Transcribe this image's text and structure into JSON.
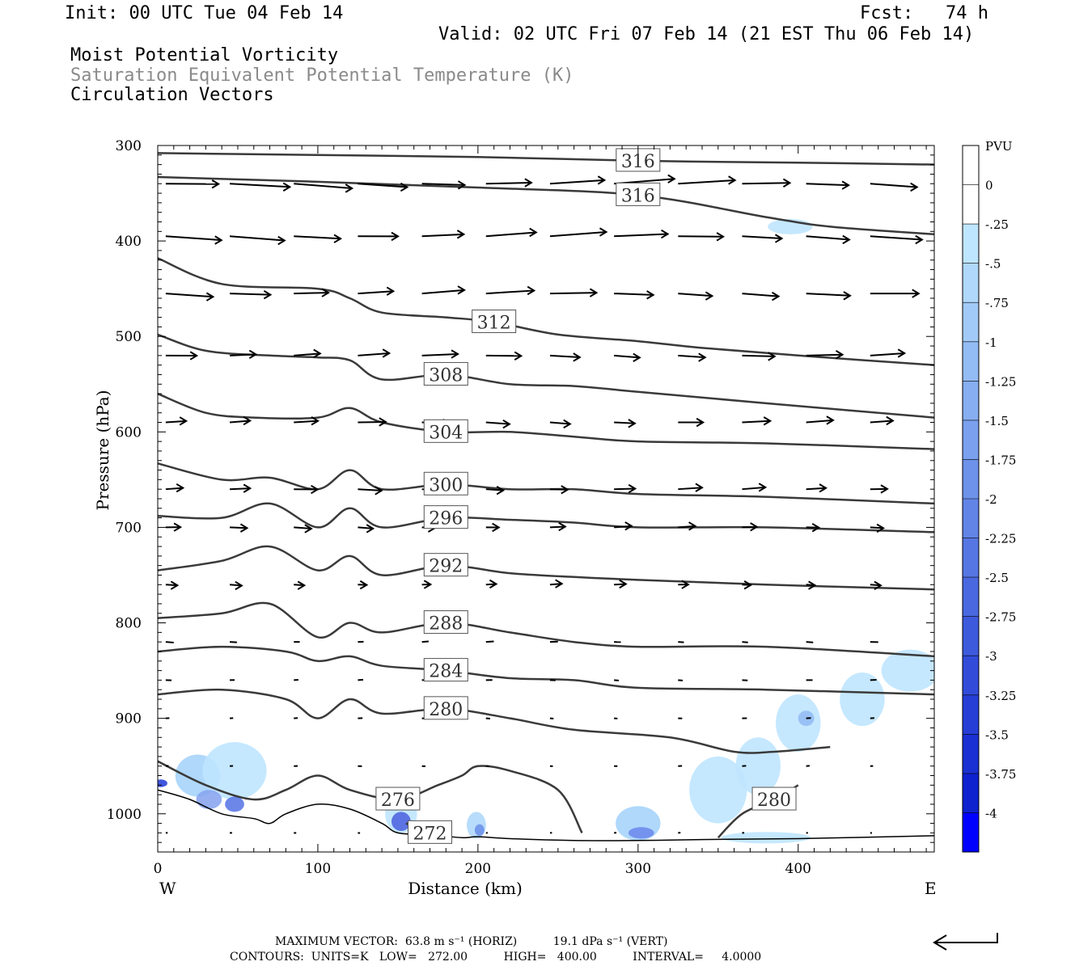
{
  "header": {
    "init": "Init: 00 UTC Tue 04 Feb 14",
    "fcst": "Fcst:   74 h",
    "valid": "Valid: 02 UTC Fri 07 Feb 14 (21 EST Thu 06 Feb 14)",
    "field1": "Moist Potential Vorticity",
    "field2": "Saturation Equivalent Potential Temperature (K)",
    "field3": "Circulation Vectors"
  },
  "footer": {
    "line1": "MAXIMUM VECTOR:  63.8 m s⁻¹ (HORIZ)          19.1 dPa s⁻¹ (VERT)",
    "line2": "CONTOURS:  UNITS=K   LOW=   272.00          HIGH=   400.00          INTERVAL=     4.0000"
  },
  "colors": {
    "contour": "#3a3a3a",
    "terrain": "#000000",
    "mpv_shades": [
      "#ffffff",
      "#ffffff",
      "#bfe6ff",
      "#b0d8fb",
      "#a2caf8",
      "#94bcf4",
      "#86aef1",
      "#7aa0ee",
      "#6e92ea",
      "#6284e7",
      "#5676e3",
      "#4a68e0",
      "#3e5adc",
      "#324cd9",
      "#263ed5",
      "#1a30d2",
      "#0e22cf",
      "#0000ff"
    ]
  },
  "chart_data": {
    "type": "cross-section",
    "xlabel": "Distance (km)",
    "ylabel": "Pressure (hPa)",
    "xlim": [
      0,
      485
    ],
    "ylim": [
      1040,
      300
    ],
    "x_ticks": [
      0,
      100,
      200,
      300,
      400
    ],
    "y_ticks": [
      300,
      400,
      500,
      600,
      700,
      800,
      900,
      1000
    ],
    "x_end_labels": [
      "W",
      "E"
    ],
    "colorbar": {
      "units": "PVU",
      "levels": [
        "0",
        "-.25",
        "-.5",
        "-.75",
        "-1",
        "-1.25",
        "-1.5",
        "-1.75",
        "-2",
        "-2.25",
        "-2.5",
        "-2.75",
        "-3",
        "-3.25",
        "-3.5",
        "-3.75",
        "-4"
      ]
    },
    "terrain_surface": [
      [
        0,
        975
      ],
      [
        20,
        985
      ],
      [
        40,
        1000
      ],
      [
        60,
        1005
      ],
      [
        70,
        1010
      ],
      [
        80,
        1000
      ],
      [
        100,
        990
      ],
      [
        120,
        995
      ],
      [
        140,
        1010
      ],
      [
        150,
        1020
      ],
      [
        170,
        1022
      ],
      [
        190,
        1025
      ],
      [
        200,
        1024
      ],
      [
        220,
        1026
      ],
      [
        260,
        1028
      ],
      [
        300,
        1028
      ],
      [
        340,
        1027
      ],
      [
        400,
        1026
      ],
      [
        485,
        1023
      ]
    ],
    "contours": [
      {
        "label": "316",
        "points": [
          [
            0,
            308
          ],
          [
            100,
            310
          ],
          [
            200,
            312
          ],
          [
            300,
            316
          ],
          [
            400,
            318
          ],
          [
            485,
            320
          ]
        ]
      },
      {
        "label": "316",
        "points": [
          [
            0,
            333
          ],
          [
            100,
            338
          ],
          [
            200,
            344
          ],
          [
            300,
            352
          ],
          [
            380,
            375
          ],
          [
            420,
            385
          ],
          [
            485,
            393
          ]
        ]
      },
      {
        "label": "312",
        "points": [
          [
            0,
            418
          ],
          [
            40,
            445
          ],
          [
            100,
            450
          ],
          [
            120,
            460
          ],
          [
            140,
            475
          ],
          [
            180,
            480
          ],
          [
            210,
            485
          ],
          [
            250,
            498
          ],
          [
            300,
            505
          ],
          [
            340,
            512
          ],
          [
            400,
            520
          ],
          [
            485,
            530
          ]
        ]
      },
      {
        "label": "308",
        "points": [
          [
            0,
            498
          ],
          [
            30,
            515
          ],
          [
            70,
            520
          ],
          [
            100,
            522
          ],
          [
            120,
            525
          ],
          [
            140,
            545
          ],
          [
            180,
            540
          ],
          [
            220,
            550
          ],
          [
            260,
            552
          ],
          [
            300,
            558
          ],
          [
            380,
            570
          ],
          [
            485,
            585
          ]
        ]
      },
      {
        "label": "304",
        "points": [
          [
            0,
            560
          ],
          [
            30,
            580
          ],
          [
            60,
            585
          ],
          [
            100,
            585
          ],
          [
            120,
            575
          ],
          [
            140,
            590
          ],
          [
            180,
            600
          ],
          [
            220,
            600
          ],
          [
            260,
            605
          ],
          [
            300,
            610
          ],
          [
            380,
            612
          ],
          [
            485,
            618
          ]
        ]
      },
      {
        "label": "300",
        "points": [
          [
            0,
            633
          ],
          [
            40,
            650
          ],
          [
            70,
            648
          ],
          [
            100,
            660
          ],
          [
            120,
            640
          ],
          [
            140,
            660
          ],
          [
            180,
            655
          ],
          [
            220,
            660
          ],
          [
            260,
            660
          ],
          [
            300,
            665
          ],
          [
            380,
            668
          ],
          [
            485,
            675
          ]
        ]
      },
      {
        "label": "296",
        "points": [
          [
            0,
            688
          ],
          [
            40,
            690
          ],
          [
            70,
            675
          ],
          [
            100,
            700
          ],
          [
            120,
            680
          ],
          [
            140,
            700
          ],
          [
            180,
            690
          ],
          [
            220,
            692
          ],
          [
            260,
            695
          ],
          [
            300,
            700
          ],
          [
            380,
            700
          ],
          [
            485,
            705
          ]
        ]
      },
      {
        "label": "292",
        "points": [
          [
            0,
            745
          ],
          [
            40,
            735
          ],
          [
            70,
            720
          ],
          [
            100,
            745
          ],
          [
            120,
            730
          ],
          [
            140,
            750
          ],
          [
            180,
            740
          ],
          [
            220,
            748
          ],
          [
            260,
            752
          ],
          [
            300,
            755
          ],
          [
            380,
            760
          ],
          [
            485,
            765
          ]
        ]
      },
      {
        "label": "288",
        "points": [
          [
            0,
            795
          ],
          [
            40,
            790
          ],
          [
            70,
            780
          ],
          [
            100,
            815
          ],
          [
            120,
            800
          ],
          [
            140,
            810
          ],
          [
            180,
            800
          ],
          [
            220,
            810
          ],
          [
            260,
            820
          ],
          [
            300,
            825
          ],
          [
            380,
            825
          ],
          [
            485,
            835
          ]
        ]
      },
      {
        "label": "284",
        "points": [
          [
            0,
            830
          ],
          [
            40,
            825
          ],
          [
            80,
            830
          ],
          [
            100,
            840
          ],
          [
            120,
            835
          ],
          [
            140,
            845
          ],
          [
            180,
            850
          ],
          [
            220,
            858
          ],
          [
            260,
            860
          ],
          [
            300,
            868
          ],
          [
            380,
            870
          ],
          [
            485,
            875
          ]
        ]
      },
      {
        "label": "280",
        "points": [
          [
            0,
            875
          ],
          [
            40,
            870
          ],
          [
            80,
            880
          ],
          [
            100,
            900
          ],
          [
            120,
            880
          ],
          [
            140,
            895
          ],
          [
            180,
            890
          ],
          [
            220,
            900
          ],
          [
            260,
            912
          ],
          [
            320,
            920
          ],
          [
            360,
            935
          ],
          [
            385,
            935
          ],
          [
            420,
            930
          ]
        ]
      },
      {
        "label": "276",
        "points": [
          [
            0,
            945
          ],
          [
            30,
            970
          ],
          [
            60,
            985
          ],
          [
            80,
            975
          ],
          [
            100,
            960
          ],
          [
            120,
            975
          ],
          [
            150,
            985
          ],
          [
            175,
            970
          ],
          [
            190,
            960
          ],
          [
            200,
            950
          ],
          [
            220,
            955
          ],
          [
            250,
            975
          ],
          [
            265,
            1020
          ]
        ]
      },
      {
        "label": "272",
        "points": [
          [
            155,
            1010
          ],
          [
            170,
            1020
          ]
        ]
      },
      {
        "label": "280",
        "points": [
          [
            350,
            1025
          ],
          [
            365,
            1000
          ],
          [
            385,
            985
          ],
          [
            400,
            970
          ]
        ]
      }
    ],
    "vectors_note": "circulation vectors, mostly eastward"
  }
}
